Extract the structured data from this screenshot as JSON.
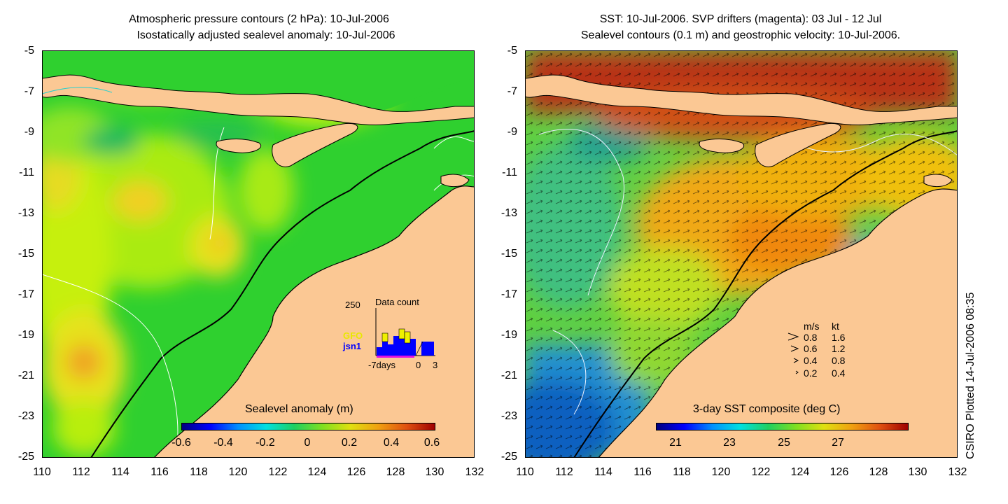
{
  "left": {
    "title_line1": "Atmospheric pressure contours (2 hPa): 10-Jul-2006",
    "title_line2": "Isostatically adjusted sealevel anomaly: 10-Jul-2006",
    "y_ticks": [
      "-5",
      "-7",
      "-9",
      "-11",
      "-13",
      "-15",
      "-17",
      "-19",
      "-21",
      "-23",
      "-25"
    ],
    "x_ticks": [
      "110",
      "112",
      "114",
      "116",
      "118",
      "120",
      "122",
      "124",
      "126",
      "128",
      "130",
      "132"
    ],
    "colorbar_title": "Sealevel anomaly (m)",
    "colorbar_ticks": [
      "-0.6",
      "-0.4",
      "-0.2",
      "0",
      "0.2",
      "0.4",
      "0.6"
    ],
    "inset": {
      "title": "Data count",
      "ymax": "250",
      "series": [
        "GFO",
        "jsn1"
      ],
      "x_labels": [
        "-7days",
        "0",
        "3"
      ]
    }
  },
  "right": {
    "title_line1": "SST: 10-Jul-2006. SVP drifters (magenta): 03 Jul - 12 Jul",
    "title_line2": "Sealevel contours (0.1 m) and geostrophic velocity: 10-Jul-2006.",
    "y_ticks": [
      "-5",
      "-7",
      "-9",
      "-11",
      "-13",
      "-15",
      "-17",
      "-19",
      "-21",
      "-23",
      "-25"
    ],
    "x_ticks": [
      "110",
      "112",
      "114",
      "116",
      "118",
      "120",
      "122",
      "124",
      "126",
      "128",
      "130",
      "132"
    ],
    "colorbar_title": "3-day SST composite (deg C)",
    "colorbar_ticks": [
      "21",
      "23",
      "25",
      "27"
    ],
    "legend": {
      "header_ms": "m/s",
      "header_kt": "kt",
      "rows": [
        {
          "ms": "0.8",
          "kt": "1.6"
        },
        {
          "ms": "0.6",
          "kt": "1.2"
        },
        {
          "ms": "0.4",
          "kt": "0.8"
        },
        {
          "ms": "0.2",
          "kt": "0.4"
        }
      ]
    }
  },
  "credit": "CSIRO Plotted 14-Jul-2006 08:35",
  "colors": {
    "land": "#fbc894",
    "sla_sea": "#2fd02f",
    "sst_warm": "#f08a10",
    "sst_hot": "#b0200a"
  }
}
